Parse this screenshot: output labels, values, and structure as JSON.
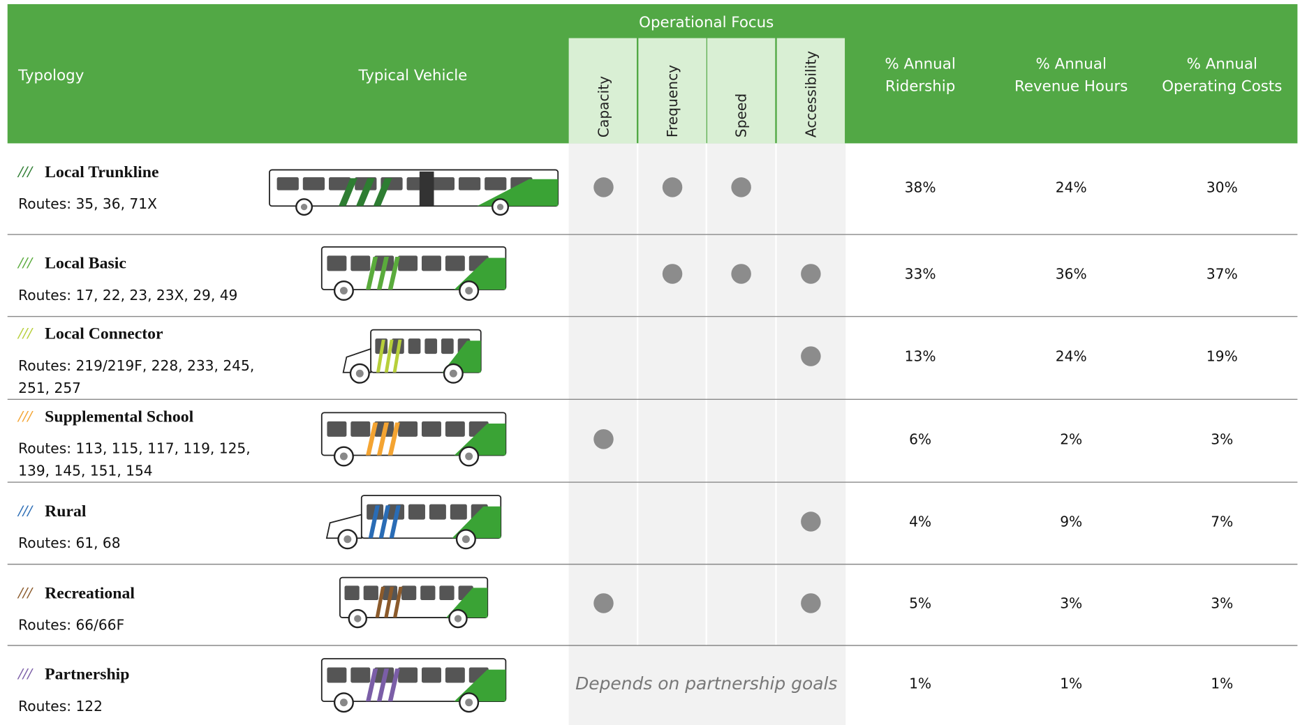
{
  "header": {
    "typology": "Typology",
    "vehicle": "Typical Vehicle",
    "focus_group": "Operational Focus",
    "focus": [
      "Capacity",
      "Frequency",
      "Speed",
      "Accessibility"
    ],
    "metrics": [
      [
        "% Annual",
        "Ridership"
      ],
      [
        "% Annual",
        "Revenue Hours"
      ],
      [
        "% Annual",
        "Operating Costs"
      ]
    ]
  },
  "table": {
    "rows": [
      {
        "marker": "///",
        "marker_color": "#2e7d32",
        "name": "Local Trunkline",
        "routes": [
          "Routes: 35, 36, 71X"
        ],
        "focus": [
          true,
          true,
          true,
          false
        ],
        "metrics": [
          "38%",
          "24%",
          "30%"
        ]
      },
      {
        "marker": "///",
        "marker_color": "#5aab3c",
        "name": "Local Basic",
        "routes": [
          "Routes: 17, 22, 23, 23X, 29, 49"
        ],
        "focus": [
          false,
          true,
          true,
          true
        ],
        "metrics": [
          "33%",
          "36%",
          "37%"
        ]
      },
      {
        "marker": "///",
        "marker_color": "#b7cf3a",
        "name": "Local Connector",
        "routes": [
          "Routes: 219/219F, 228, 233, 245,",
          "251, 257"
        ],
        "focus": [
          false,
          false,
          false,
          true
        ],
        "metrics": [
          "13%",
          "24%",
          "19%"
        ]
      },
      {
        "marker": "///",
        "marker_color": "#f4a432",
        "name": "Supplemental School",
        "routes": [
          "Routes: 113, 115, 117, 119, 125,",
          "139, 145, 151, 154"
        ],
        "focus": [
          true,
          false,
          false,
          false
        ],
        "metrics": [
          "6%",
          "2%",
          "3%"
        ]
      },
      {
        "marker": "///",
        "marker_color": "#2a6cb5",
        "name": "Rural",
        "routes": [
          "Routes: 61, 68"
        ],
        "focus": [
          false,
          false,
          false,
          true
        ],
        "metrics": [
          "4%",
          "9%",
          "7%"
        ]
      },
      {
        "marker": "///",
        "marker_color": "#8b5a2b",
        "name": "Recreational",
        "routes": [
          "Routes: 66/66F"
        ],
        "focus": [
          true,
          false,
          false,
          true
        ],
        "metrics": [
          "5%",
          "3%",
          "3%"
        ]
      },
      {
        "marker": "///",
        "marker_color": "#7b5ea7",
        "name": "Partnership",
        "routes": [
          "Routes: 122"
        ],
        "focus_note": "Depends on partnership goals",
        "metrics": [
          "1%",
          "1%",
          "1%"
        ]
      }
    ]
  }
}
